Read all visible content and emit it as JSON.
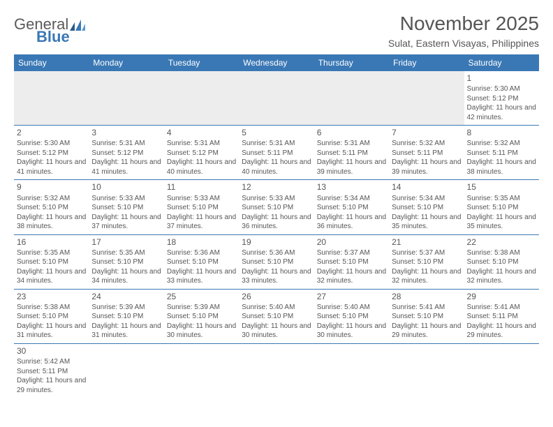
{
  "logo": {
    "word1": "General",
    "word2": "Blue"
  },
  "title": "November 2025",
  "location": "Sulat, Eastern Visayas, Philippines",
  "colors": {
    "header_blue": "#3a78b5",
    "text": "#555555",
    "shade": "#ededed",
    "white": "#ffffff"
  },
  "day_headers": [
    "Sunday",
    "Monday",
    "Tuesday",
    "Wednesday",
    "Thursday",
    "Friday",
    "Saturday"
  ],
  "weeks": [
    [
      null,
      null,
      null,
      null,
      null,
      null,
      {
        "n": "1",
        "sunrise": "Sunrise: 5:30 AM",
        "sunset": "Sunset: 5:12 PM",
        "daylight": "Daylight: 11 hours and 42 minutes."
      }
    ],
    [
      {
        "n": "2",
        "sunrise": "Sunrise: 5:30 AM",
        "sunset": "Sunset: 5:12 PM",
        "daylight": "Daylight: 11 hours and 41 minutes."
      },
      {
        "n": "3",
        "sunrise": "Sunrise: 5:31 AM",
        "sunset": "Sunset: 5:12 PM",
        "daylight": "Daylight: 11 hours and 41 minutes."
      },
      {
        "n": "4",
        "sunrise": "Sunrise: 5:31 AM",
        "sunset": "Sunset: 5:12 PM",
        "daylight": "Daylight: 11 hours and 40 minutes."
      },
      {
        "n": "5",
        "sunrise": "Sunrise: 5:31 AM",
        "sunset": "Sunset: 5:11 PM",
        "daylight": "Daylight: 11 hours and 40 minutes."
      },
      {
        "n": "6",
        "sunrise": "Sunrise: 5:31 AM",
        "sunset": "Sunset: 5:11 PM",
        "daylight": "Daylight: 11 hours and 39 minutes."
      },
      {
        "n": "7",
        "sunrise": "Sunrise: 5:32 AM",
        "sunset": "Sunset: 5:11 PM",
        "daylight": "Daylight: 11 hours and 39 minutes."
      },
      {
        "n": "8",
        "sunrise": "Sunrise: 5:32 AM",
        "sunset": "Sunset: 5:11 PM",
        "daylight": "Daylight: 11 hours and 38 minutes."
      }
    ],
    [
      {
        "n": "9",
        "sunrise": "Sunrise: 5:32 AM",
        "sunset": "Sunset: 5:10 PM",
        "daylight": "Daylight: 11 hours and 38 minutes."
      },
      {
        "n": "10",
        "sunrise": "Sunrise: 5:33 AM",
        "sunset": "Sunset: 5:10 PM",
        "daylight": "Daylight: 11 hours and 37 minutes."
      },
      {
        "n": "11",
        "sunrise": "Sunrise: 5:33 AM",
        "sunset": "Sunset: 5:10 PM",
        "daylight": "Daylight: 11 hours and 37 minutes."
      },
      {
        "n": "12",
        "sunrise": "Sunrise: 5:33 AM",
        "sunset": "Sunset: 5:10 PM",
        "daylight": "Daylight: 11 hours and 36 minutes."
      },
      {
        "n": "13",
        "sunrise": "Sunrise: 5:34 AM",
        "sunset": "Sunset: 5:10 PM",
        "daylight": "Daylight: 11 hours and 36 minutes."
      },
      {
        "n": "14",
        "sunrise": "Sunrise: 5:34 AM",
        "sunset": "Sunset: 5:10 PM",
        "daylight": "Daylight: 11 hours and 35 minutes."
      },
      {
        "n": "15",
        "sunrise": "Sunrise: 5:35 AM",
        "sunset": "Sunset: 5:10 PM",
        "daylight": "Daylight: 11 hours and 35 minutes."
      }
    ],
    [
      {
        "n": "16",
        "sunrise": "Sunrise: 5:35 AM",
        "sunset": "Sunset: 5:10 PM",
        "daylight": "Daylight: 11 hours and 34 minutes."
      },
      {
        "n": "17",
        "sunrise": "Sunrise: 5:35 AM",
        "sunset": "Sunset: 5:10 PM",
        "daylight": "Daylight: 11 hours and 34 minutes."
      },
      {
        "n": "18",
        "sunrise": "Sunrise: 5:36 AM",
        "sunset": "Sunset: 5:10 PM",
        "daylight": "Daylight: 11 hours and 33 minutes."
      },
      {
        "n": "19",
        "sunrise": "Sunrise: 5:36 AM",
        "sunset": "Sunset: 5:10 PM",
        "daylight": "Daylight: 11 hours and 33 minutes."
      },
      {
        "n": "20",
        "sunrise": "Sunrise: 5:37 AM",
        "sunset": "Sunset: 5:10 PM",
        "daylight": "Daylight: 11 hours and 32 minutes."
      },
      {
        "n": "21",
        "sunrise": "Sunrise: 5:37 AM",
        "sunset": "Sunset: 5:10 PM",
        "daylight": "Daylight: 11 hours and 32 minutes."
      },
      {
        "n": "22",
        "sunrise": "Sunrise: 5:38 AM",
        "sunset": "Sunset: 5:10 PM",
        "daylight": "Daylight: 11 hours and 32 minutes."
      }
    ],
    [
      {
        "n": "23",
        "sunrise": "Sunrise: 5:38 AM",
        "sunset": "Sunset: 5:10 PM",
        "daylight": "Daylight: 11 hours and 31 minutes."
      },
      {
        "n": "24",
        "sunrise": "Sunrise: 5:39 AM",
        "sunset": "Sunset: 5:10 PM",
        "daylight": "Daylight: 11 hours and 31 minutes."
      },
      {
        "n": "25",
        "sunrise": "Sunrise: 5:39 AM",
        "sunset": "Sunset: 5:10 PM",
        "daylight": "Daylight: 11 hours and 30 minutes."
      },
      {
        "n": "26",
        "sunrise": "Sunrise: 5:40 AM",
        "sunset": "Sunset: 5:10 PM",
        "daylight": "Daylight: 11 hours and 30 minutes."
      },
      {
        "n": "27",
        "sunrise": "Sunrise: 5:40 AM",
        "sunset": "Sunset: 5:10 PM",
        "daylight": "Daylight: 11 hours and 30 minutes."
      },
      {
        "n": "28",
        "sunrise": "Sunrise: 5:41 AM",
        "sunset": "Sunset: 5:10 PM",
        "daylight": "Daylight: 11 hours and 29 minutes."
      },
      {
        "n": "29",
        "sunrise": "Sunrise: 5:41 AM",
        "sunset": "Sunset: 5:11 PM",
        "daylight": "Daylight: 11 hours and 29 minutes."
      }
    ],
    [
      {
        "n": "30",
        "sunrise": "Sunrise: 5:42 AM",
        "sunset": "Sunset: 5:11 PM",
        "daylight": "Daylight: 11 hours and 29 minutes."
      },
      null,
      null,
      null,
      null,
      null,
      null
    ]
  ]
}
